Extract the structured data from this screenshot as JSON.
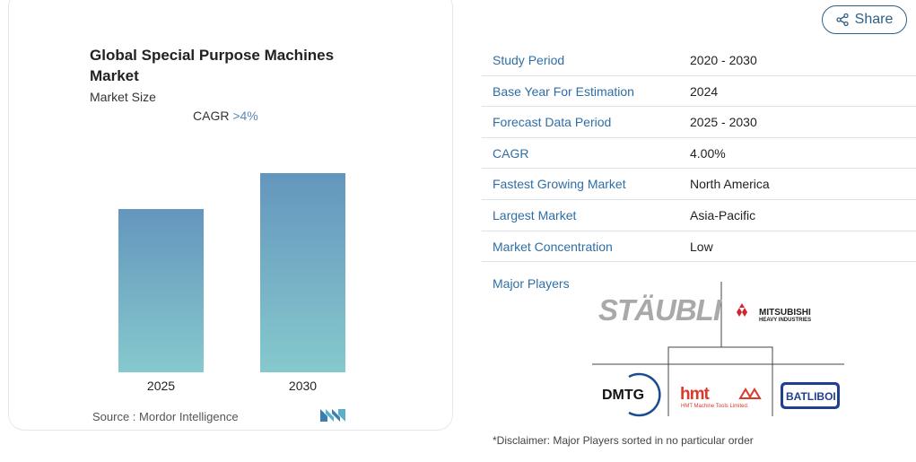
{
  "chart": {
    "title": "Global Special Purpose Machines Market",
    "subtitle": "Market Size",
    "cagr_label": "CAGR",
    "cagr_value": ">4%",
    "source": "Source : Mordor Intelligence"
  },
  "chart_data": {
    "type": "bar",
    "title": "Global Special Purpose Machines Market",
    "subtitle": "Market Size",
    "categories": [
      "2025",
      "2030"
    ],
    "values": [
      1.0,
      1.22
    ],
    "colors": {
      "bar_top": "#6496bd",
      "bar_bottom": "#86c9cd"
    },
    "grid": false,
    "value_axis_shown": false
  },
  "share": {
    "label": "Share",
    "icon": "share-icon"
  },
  "market_info": [
    {
      "key": "Study Period",
      "value": "2020 - 2030"
    },
    {
      "key": "Base Year For Estimation",
      "value": "2024"
    },
    {
      "key": "Forecast Data Period",
      "value": "2025 - 2030"
    },
    {
      "key": "CAGR",
      "value": "4.00%"
    },
    {
      "key": "Fastest Growing Market",
      "value": "North America"
    },
    {
      "key": "Largest Market",
      "value": "Asia-Pacific"
    },
    {
      "key": "Market Concentration",
      "value": "Low"
    }
  ],
  "players": {
    "label": "Major Players",
    "logos": [
      "STÄUBLI",
      "MITSUBISHI HEAVY INDUSTRIES",
      "DMTG",
      "hmt HMT Machine Tools Limited",
      "BATLIBOI"
    ]
  },
  "disclaimer": "*Disclaimer: Major Players sorted in no particular order",
  "colors": {
    "accent": "#2f6ea5",
    "border": "#dde2e8"
  }
}
